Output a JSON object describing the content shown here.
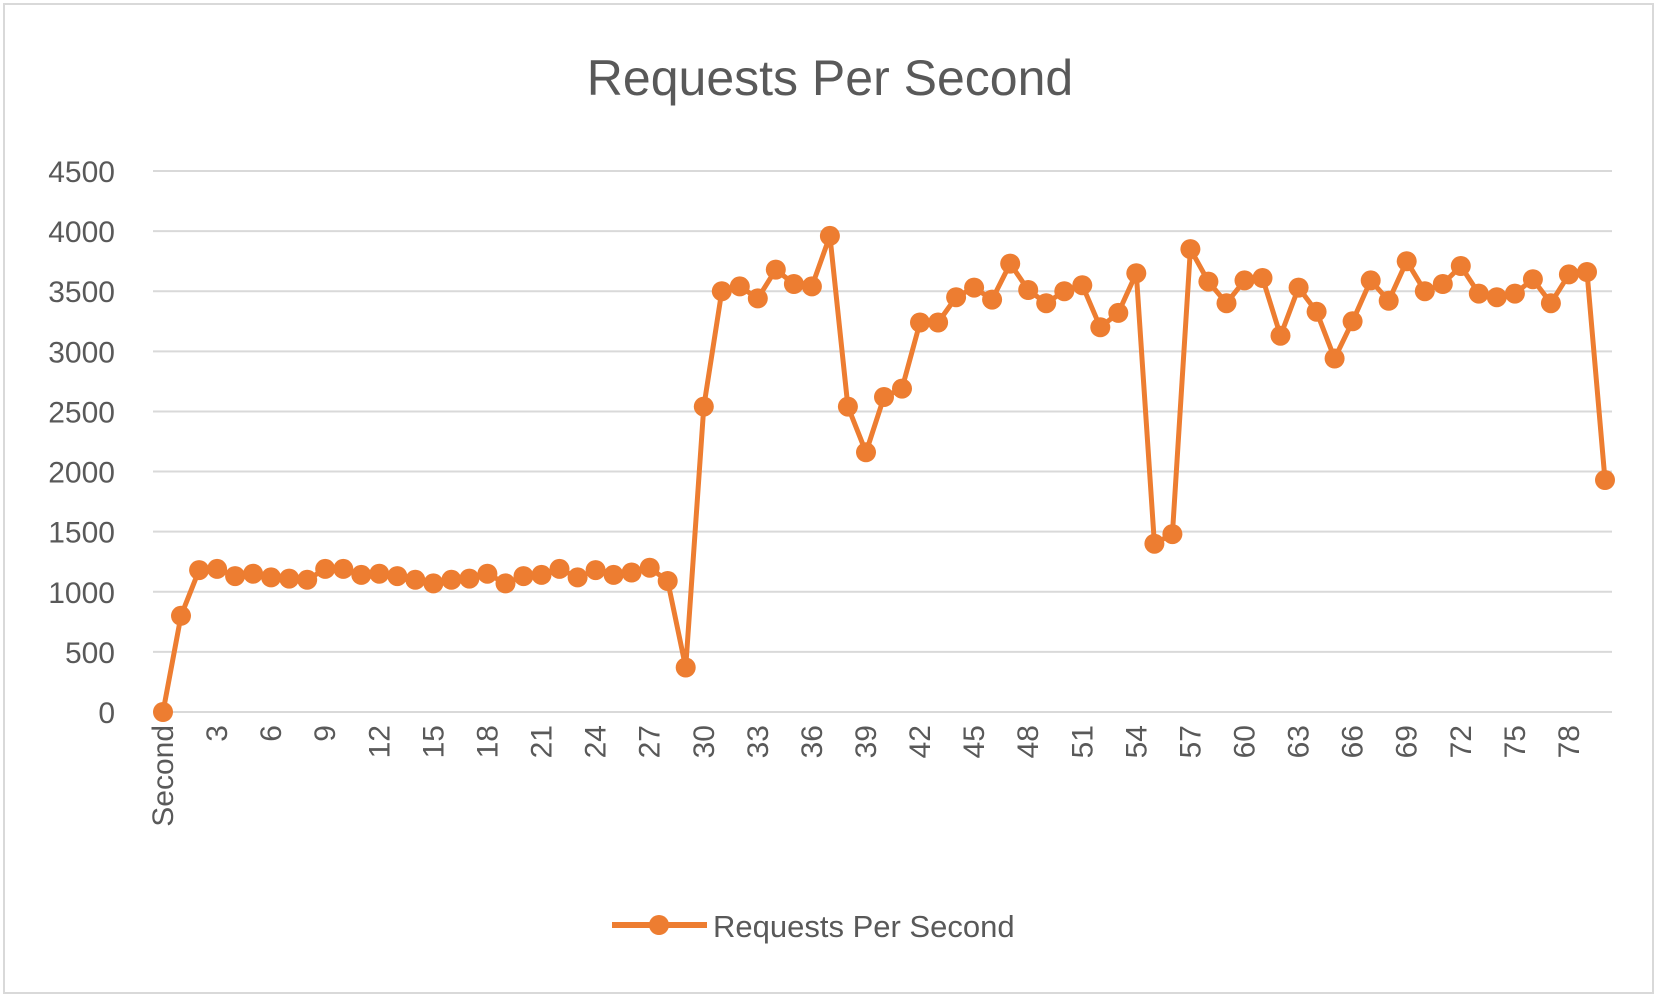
{
  "chart_data": {
    "type": "line",
    "title": "Requests Per Second",
    "xlabel": "",
    "ylabel": "",
    "ylim": [
      0,
      4500
    ],
    "y_ticks": [
      0,
      500,
      1000,
      1500,
      2000,
      2500,
      3000,
      3500,
      4000,
      4500
    ],
    "y_tick_labels": [
      "0",
      "500",
      "1000",
      "1500",
      "2000",
      "2500",
      "3000",
      "3500",
      "4000",
      "4500"
    ],
    "categories": [
      "Second",
      "1",
      "2",
      "3",
      "4",
      "5",
      "6",
      "7",
      "8",
      "9",
      "10",
      "11",
      "12",
      "13",
      "14",
      "15",
      "16",
      "17",
      "18",
      "19",
      "20",
      "21",
      "22",
      "23",
      "24",
      "25",
      "26",
      "27",
      "28",
      "29",
      "30",
      "31",
      "32",
      "33",
      "34",
      "35",
      "36",
      "37",
      "38",
      "39",
      "40",
      "41",
      "42",
      "43",
      "44",
      "45",
      "46",
      "47",
      "48",
      "49",
      "50",
      "51",
      "52",
      "53",
      "54",
      "55",
      "56",
      "57",
      "58",
      "59",
      "60",
      "61",
      "62",
      "63",
      "64",
      "65",
      "66",
      "67",
      "68",
      "69",
      "70",
      "71",
      "72",
      "73",
      "74",
      "75",
      "76",
      "77",
      "78",
      "79",
      "80"
    ],
    "x_tick_labels": [
      "Second",
      "3",
      "6",
      "9",
      "12",
      "15",
      "18",
      "21",
      "24",
      "27",
      "30",
      "33",
      "36",
      "39",
      "42",
      "45",
      "48",
      "51",
      "54",
      "57",
      "60",
      "63",
      "66",
      "69",
      "72",
      "75",
      "78"
    ],
    "x_tick_label_indices": [
      0,
      3,
      6,
      9,
      12,
      15,
      18,
      21,
      24,
      27,
      30,
      33,
      36,
      39,
      42,
      45,
      48,
      51,
      54,
      57,
      60,
      63,
      66,
      69,
      72,
      75,
      78
    ],
    "grid": true,
    "legend_position": "bottom",
    "colors": {
      "series": "#ed7d31",
      "grid": "#d9d9d9",
      "text": "#595959",
      "border": "#d9d9d9"
    },
    "series": [
      {
        "name": "Requests Per Second",
        "values": [
          0,
          800,
          1180,
          1190,
          1130,
          1150,
          1120,
          1110,
          1100,
          1190,
          1190,
          1140,
          1150,
          1130,
          1100,
          1070,
          1100,
          1110,
          1150,
          1070,
          1130,
          1140,
          1190,
          1120,
          1180,
          1140,
          1160,
          1200,
          1090,
          370,
          2540,
          3500,
          3540,
          3440,
          3680,
          3560,
          3540,
          3960,
          2540,
          2160,
          2620,
          2690,
          3240,
          3240,
          3450,
          3530,
          3430,
          3730,
          3510,
          3400,
          3500,
          3550,
          3200,
          3320,
          3650,
          1400,
          1480,
          3850,
          3580,
          3400,
          3590,
          3610,
          3130,
          3530,
          3330,
          2940,
          3250,
          3590,
          3420,
          3750,
          3500,
          3560,
          3710,
          3480,
          3450,
          3480,
          3600,
          3400,
          3640,
          3660,
          1930
        ]
      }
    ]
  }
}
